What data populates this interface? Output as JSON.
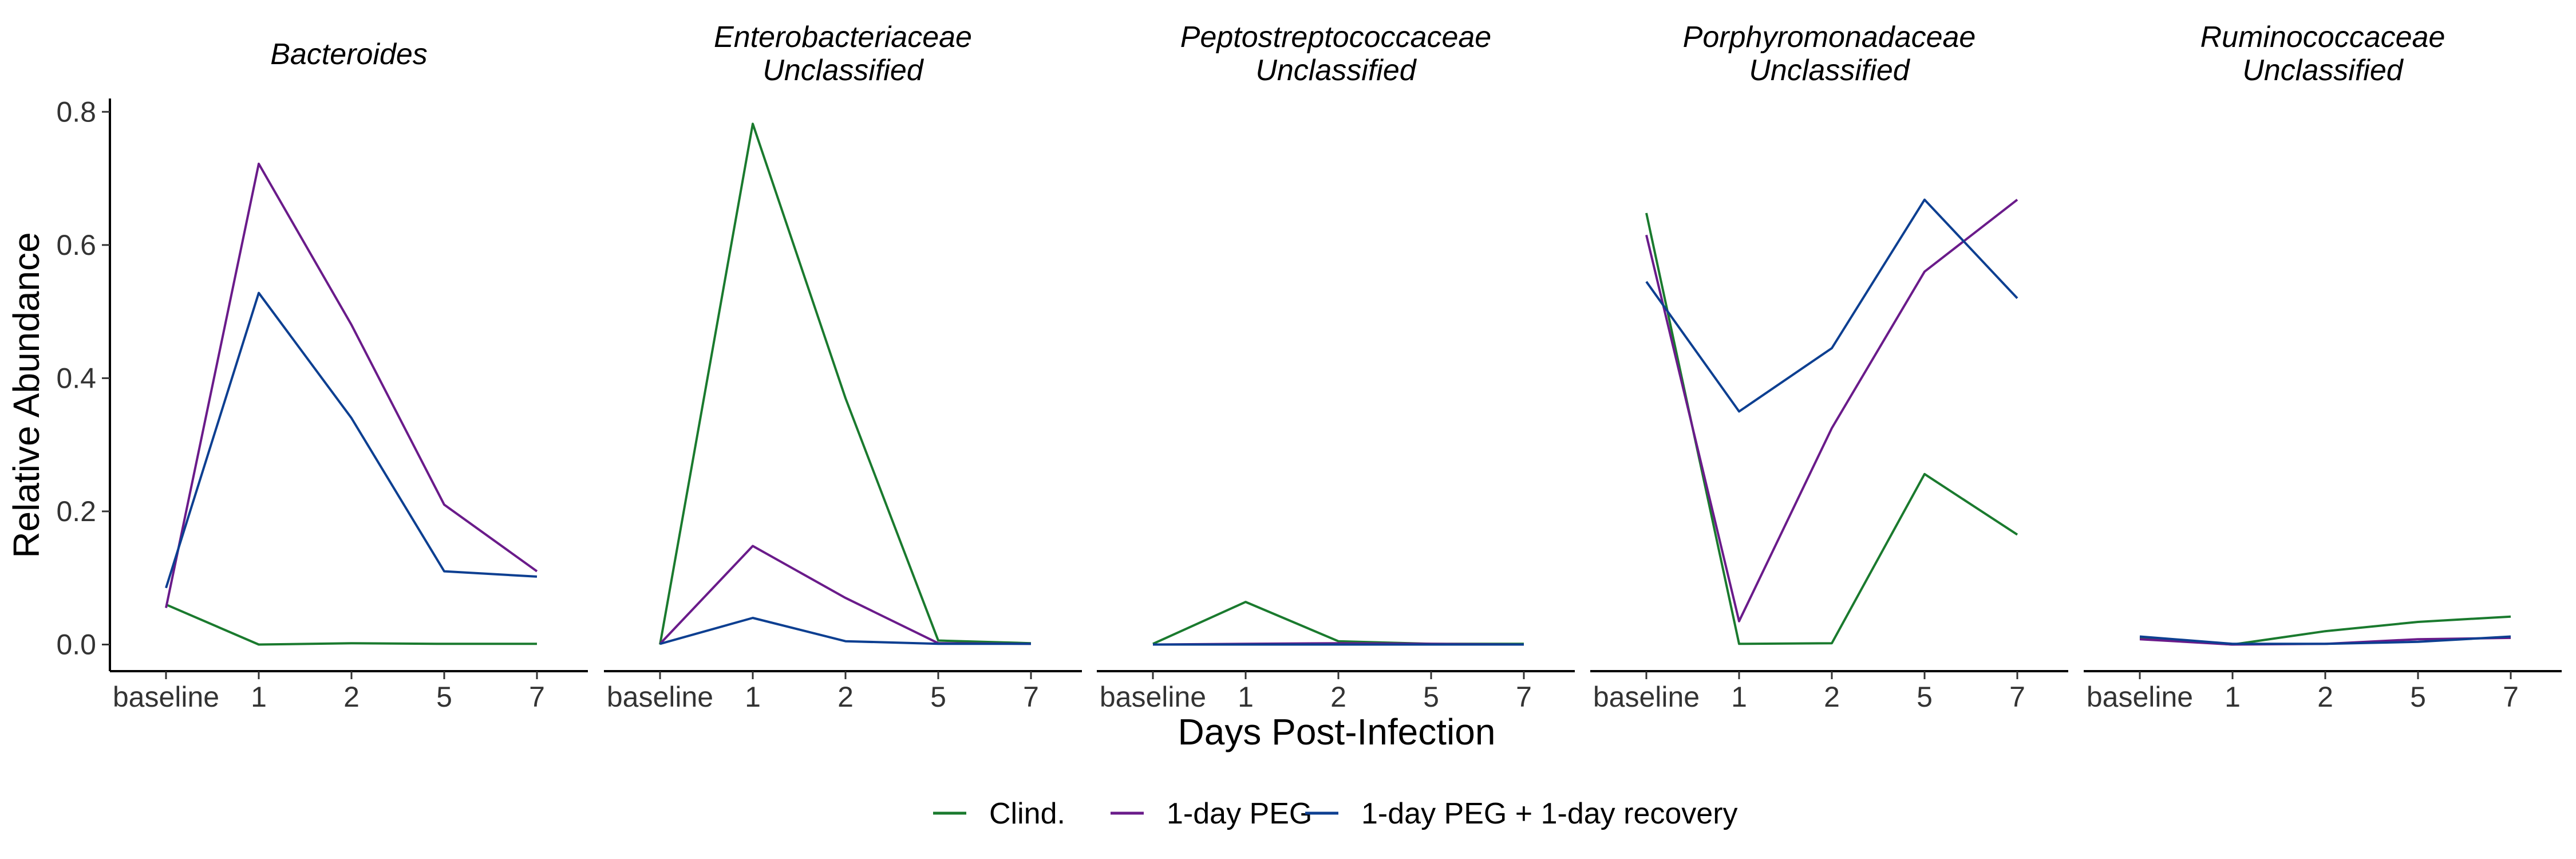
{
  "chart_data": {
    "type": "line",
    "ylabel": "Relative Abundance",
    "xlabel": "Days Post-Infection",
    "categories": [
      "baseline",
      "1",
      "2",
      "5",
      "7"
    ],
    "ylim": [
      -0.04,
      0.82
    ],
    "yticks": [
      0.0,
      0.2,
      0.4,
      0.6,
      0.8
    ],
    "ytick_labels": [
      "0.0",
      "0.2",
      "0.4",
      "0.6",
      "0.8"
    ],
    "grid": false,
    "legend_position": "bottom",
    "legend": [
      {
        "name": "Clind.",
        "color": "#1a7a2e"
      },
      {
        "name": "1-day PEG",
        "color": "#6a1b8a"
      },
      {
        "name": "1-day PEG + 1-day recovery",
        "color": "#0d3f91"
      }
    ],
    "panels": [
      {
        "title_lines": [
          "Bacteroides"
        ],
        "series": [
          {
            "name": "Clind.",
            "values": [
              0.06,
              0.0,
              0.002,
              0.001,
              0.001
            ]
          },
          {
            "name": "1-day PEG",
            "values": [
              0.055,
              0.722,
              0.48,
              0.21,
              0.11
            ]
          },
          {
            "name": "1-day PEG + 1-day recovery",
            "values": [
              0.085,
              0.528,
              0.34,
              0.11,
              0.102
            ]
          }
        ]
      },
      {
        "title_lines": [
          "Enterobacteriaceae",
          "Unclassified"
        ],
        "series": [
          {
            "name": "Clind.",
            "values": [
              0.0,
              0.782,
              0.37,
              0.006,
              0.002
            ]
          },
          {
            "name": "1-day PEG",
            "values": [
              0.001,
              0.148,
              0.07,
              0.002,
              0.001
            ]
          },
          {
            "name": "1-day PEG + 1-day recovery",
            "values": [
              0.001,
              0.04,
              0.005,
              0.001,
              0.001
            ]
          }
        ]
      },
      {
        "title_lines": [
          "Peptostreptococcaceae",
          "Unclassified"
        ],
        "series": [
          {
            "name": "Clind.",
            "values": [
              0.001,
              0.064,
              0.005,
              0.001,
              0.001
            ]
          },
          {
            "name": "1-day PEG",
            "values": [
              0.0,
              0.001,
              0.002,
              0.001,
              0.0
            ]
          },
          {
            "name": "1-day PEG + 1-day recovery",
            "values": [
              0.0,
              0.0,
              0.0,
              0.0,
              0.0
            ]
          }
        ]
      },
      {
        "title_lines": [
          "Porphyromonadaceae",
          "Unclassified"
        ],
        "series": [
          {
            "name": "Clind.",
            "values": [
              0.648,
              0.001,
              0.002,
              0.256,
              0.165
            ]
          },
          {
            "name": "1-day PEG",
            "values": [
              0.615,
              0.035,
              0.325,
              0.56,
              0.668
            ]
          },
          {
            "name": "1-day PEG + 1-day recovery",
            "values": [
              0.545,
              0.35,
              0.445,
              0.668,
              0.52
            ]
          }
        ]
      },
      {
        "title_lines": [
          "Ruminococcaceae",
          "Unclassified"
        ],
        "series": [
          {
            "name": "Clind.",
            "values": [
              0.01,
              0.0,
              0.02,
              0.034,
              0.042
            ]
          },
          {
            "name": "1-day PEG",
            "values": [
              0.008,
              0.0,
              0.001,
              0.008,
              0.01
            ]
          },
          {
            "name": "1-day PEG + 1-day recovery",
            "values": [
              0.012,
              0.001,
              0.001,
              0.004,
              0.012
            ]
          }
        ]
      }
    ]
  }
}
